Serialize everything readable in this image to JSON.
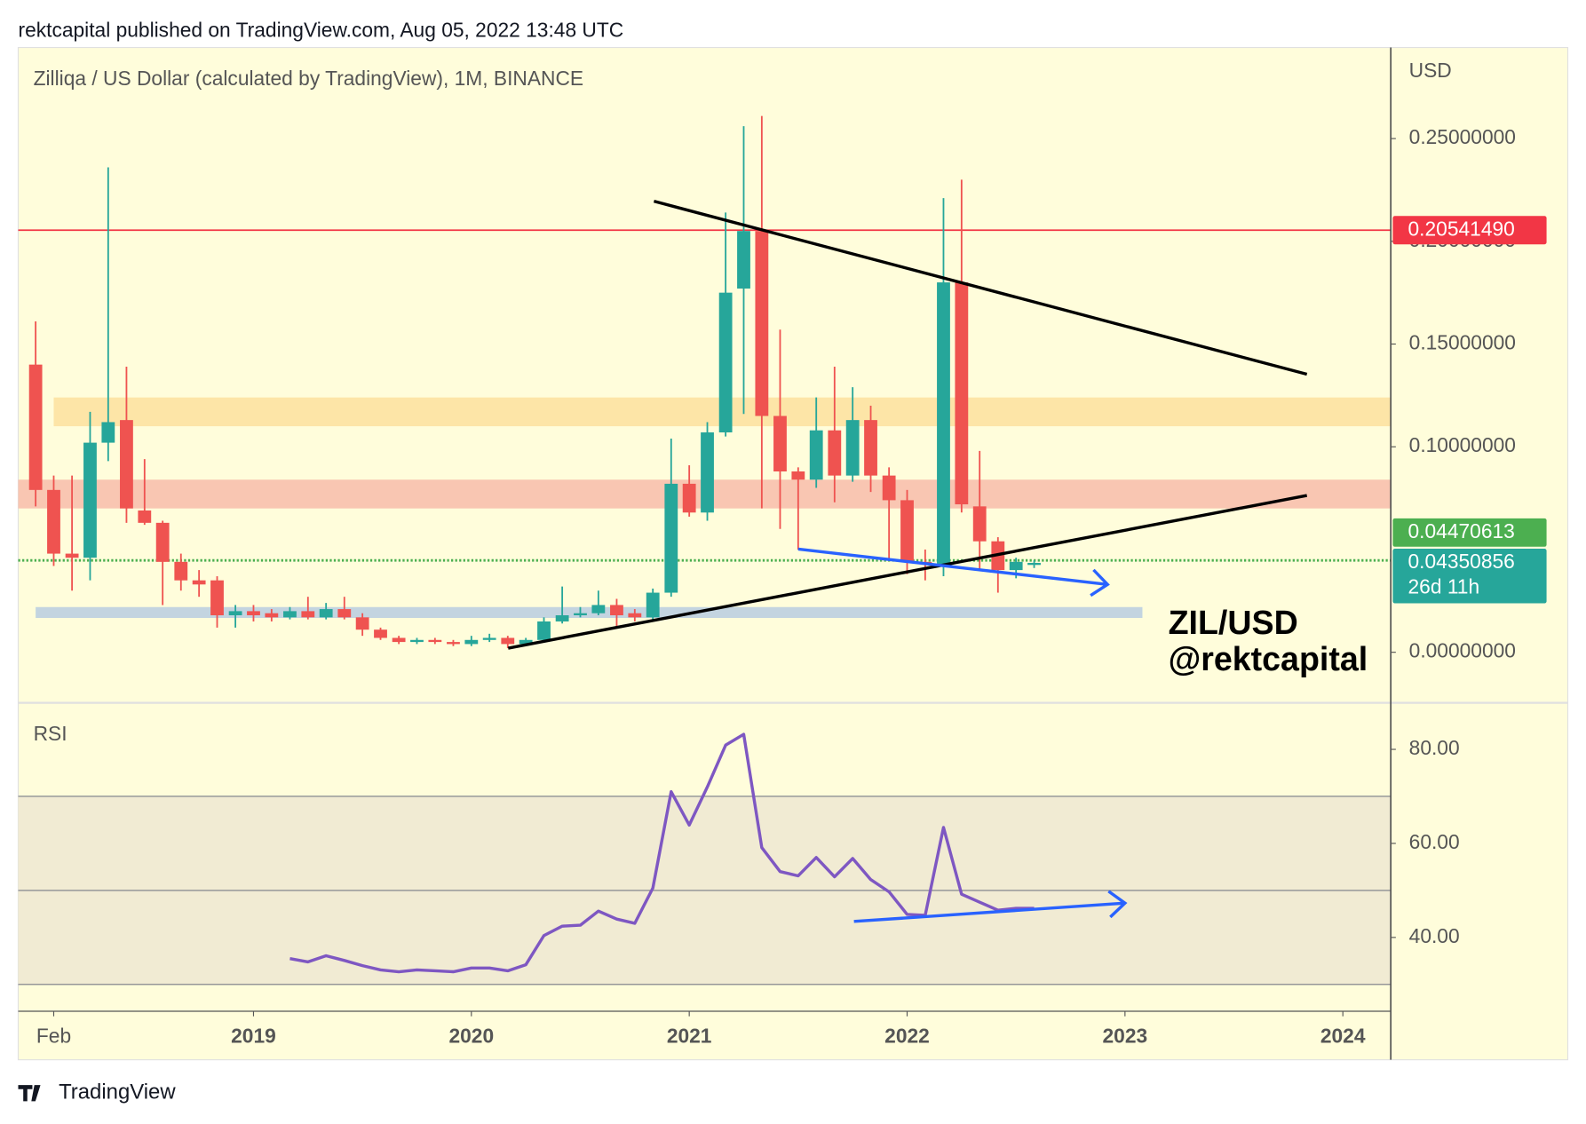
{
  "header": "rektcapital published on TradingView.com, Aug 05, 2022 13:48 UTC",
  "footer": "TradingView",
  "chart_data": [
    {
      "type": "candlestick",
      "title": "Zilliqa / US Dollar (calculated by TradingView), 1M, BINANCE",
      "y_axis_label": "USD",
      "x": [
        2018.0,
        2018.083,
        2018.167,
        2018.25,
        2018.333,
        2018.417,
        2018.5,
        2018.583,
        2018.667,
        2018.75,
        2018.833,
        2018.917,
        2019.0,
        2019.083,
        2019.167,
        2019.25,
        2019.333,
        2019.417,
        2019.5,
        2019.583,
        2019.667,
        2019.75,
        2019.833,
        2019.917,
        2020.0,
        2020.083,
        2020.167,
        2020.25,
        2020.333,
        2020.417,
        2020.5,
        2020.583,
        2020.667,
        2020.75,
        2020.833,
        2020.917,
        2021.0,
        2021.083,
        2021.167,
        2021.25,
        2021.333,
        2021.417,
        2021.5,
        2021.583,
        2021.667,
        2021.75,
        2021.833,
        2021.917,
        2022.0,
        2022.083,
        2022.167,
        2022.25,
        2022.333,
        2022.417,
        2022.5,
        2022.583
      ],
      "open": [
        0.14,
        0.079,
        0.048,
        0.046,
        0.102,
        0.113,
        0.069,
        0.063,
        0.044,
        0.035,
        0.035,
        0.018,
        0.02,
        0.019,
        0.017,
        0.02,
        0.017,
        0.021,
        0.017,
        0.011,
        0.007,
        0.005,
        0.006,
        0.005,
        0.004,
        0.006,
        0.007,
        0.004,
        0.006,
        0.015,
        0.018,
        0.019,
        0.023,
        0.019,
        0.017,
        0.029,
        0.082,
        0.068,
        0.107,
        0.177,
        0.205,
        0.115,
        0.088,
        0.084,
        0.108,
        0.086,
        0.113,
        0.086,
        0.074,
        0.044,
        0.043,
        0.18,
        0.071,
        0.054,
        0.04,
        0.0425
      ],
      "high": [
        0.161,
        0.086,
        0.086,
        0.117,
        0.236,
        0.139,
        0.094,
        0.064,
        0.048,
        0.04,
        0.037,
        0.023,
        0.023,
        0.021,
        0.022,
        0.027,
        0.024,
        0.027,
        0.019,
        0.012,
        0.008,
        0.007,
        0.007,
        0.006,
        0.008,
        0.009,
        0.008,
        0.007,
        0.017,
        0.032,
        0.022,
        0.03,
        0.026,
        0.021,
        0.031,
        0.104,
        0.091,
        0.112,
        0.214,
        0.256,
        0.261,
        0.157,
        0.09,
        0.124,
        0.139,
        0.129,
        0.12,
        0.09,
        0.079,
        0.05,
        0.221,
        0.23,
        0.098,
        0.056,
        0.046,
        0.0447
      ],
      "low": [
        0.071,
        0.042,
        0.03,
        0.035,
        0.093,
        0.063,
        0.062,
        0.023,
        0.03,
        0.027,
        0.012,
        0.012,
        0.015,
        0.015,
        0.016,
        0.016,
        0.016,
        0.016,
        0.008,
        0.006,
        0.004,
        0.004,
        0.004,
        0.003,
        0.003,
        0.005,
        0.002,
        0.003,
        0.005,
        0.014,
        0.017,
        0.018,
        0.012,
        0.015,
        0.016,
        0.027,
        0.066,
        0.064,
        0.105,
        0.116,
        0.07,
        0.06,
        0.05,
        0.08,
        0.073,
        0.083,
        0.078,
        0.045,
        0.038,
        0.035,
        0.037,
        0.068,
        0.04,
        0.029,
        0.036,
        0.041
      ],
      "close": [
        0.079,
        0.048,
        0.046,
        0.102,
        0.112,
        0.07,
        0.063,
        0.044,
        0.035,
        0.033,
        0.018,
        0.02,
        0.018,
        0.017,
        0.02,
        0.017,
        0.021,
        0.017,
        0.011,
        0.007,
        0.005,
        0.006,
        0.005,
        0.004,
        0.006,
        0.007,
        0.004,
        0.006,
        0.015,
        0.018,
        0.019,
        0.023,
        0.018,
        0.017,
        0.029,
        0.082,
        0.068,
        0.107,
        0.175,
        0.205,
        0.115,
        0.088,
        0.084,
        0.108,
        0.086,
        0.113,
        0.086,
        0.074,
        0.044,
        0.043,
        0.18,
        0.072,
        0.054,
        0.04,
        0.044,
        0.0435
      ],
      "up_color": "#26a69a",
      "down_color": "#ef5350",
      "xlim": [
        2017.92,
        2024.22
      ],
      "ylim": [
        -0.0246,
        0.2943
      ],
      "yticks": [
        {
          "value": 0,
          "label": "0.00000000"
        },
        {
          "value": 0.1,
          "label": "0.10000000"
        },
        {
          "value": 0.15,
          "label": "0.15000000"
        },
        {
          "value": 0.2,
          "label": "0.20000000"
        },
        {
          "value": 0.25,
          "label": "0.25000000"
        }
      ],
      "zones": [
        {
          "from": 0.11,
          "to": 0.124,
          "x": [
            2018.083,
            2024.22
          ],
          "color": "#fde5a7"
        },
        {
          "from": 0.07,
          "to": 0.084,
          "x": [
            2017.92,
            2024.22
          ],
          "color": "#f9c6b2"
        },
        {
          "from": 0.0167,
          "to": 0.022,
          "x": [
            2018.0,
            2023.08
          ],
          "color": "#c3d4e0"
        }
      ],
      "price_lines": [
        {
          "value": 0.2054149,
          "label": "0.20541490",
          "color": "#f23645",
          "style": "solid"
        },
        {
          "value": 0.04470613,
          "label": "0.04470613",
          "color": "#4caf50",
          "style": "dotted"
        },
        {
          "value": 0.04350856,
          "label": "0.04350856",
          "countdown": "26d 11h",
          "color": "#26a69a"
        }
      ],
      "trendlines": [
        {
          "x": [
            2020.838,
            2023.835
          ],
          "y": [
            0.2195,
            0.1353
          ],
          "color": "#000000"
        },
        {
          "x": [
            2020.169,
            2023.835
          ],
          "y": [
            0.002,
            0.0763
          ],
          "color": "#000000"
        },
        {
          "x": [
            2021.5,
            2022.92
          ],
          "y": [
            0.0502,
            0.033
          ],
          "color": "#2962ff",
          "arrow": true
        }
      ],
      "annotations": [
        "ZIL/USD",
        "@rektcapital"
      ]
    },
    {
      "type": "line",
      "title": "RSI",
      "series": [
        {
          "color": "#7e57c2",
          "values": [
            null,
            null,
            null,
            null,
            null,
            null,
            null,
            null,
            null,
            null,
            null,
            null,
            null,
            null,
            35.5,
            34.8,
            36.1,
            35.1,
            34.0,
            33.1,
            32.7,
            33.1,
            32.9,
            32.7,
            33.5,
            33.5,
            32.9,
            34.2,
            40.4,
            42.4,
            42.6,
            45.6,
            43.9,
            43.0,
            50.5,
            71.0,
            63.9,
            72.0,
            80.9,
            83.2,
            59.1,
            54.0,
            53.1,
            57.0,
            52.9,
            56.8,
            52.3,
            49.7,
            44.9,
            44.7,
            63.4,
            49.2,
            47.5,
            45.8,
            46.2,
            46.2
          ]
        }
      ],
      "xlim": [
        2017.92,
        2024.22
      ],
      "ylim": [
        24.3,
        89.9
      ],
      "yticks": [
        {
          "value": 40,
          "label": "40.00"
        },
        {
          "value": 60,
          "label": "60.00"
        },
        {
          "value": 80,
          "label": "80.00"
        }
      ],
      "band": {
        "from": 30,
        "to": 70,
        "color": "#f1ebd3"
      },
      "hlines": [
        70,
        50,
        30
      ],
      "trendlines": [
        {
          "x": [
            2021.756,
            2023.0
          ],
          "y": [
            43.4,
            47.3
          ],
          "color": "#2962ff",
          "arrow": true
        }
      ],
      "xticks": [
        {
          "value": 2018.083,
          "label": "Feb"
        },
        2019,
        2020,
        2021,
        2022,
        2023,
        2024
      ]
    }
  ]
}
